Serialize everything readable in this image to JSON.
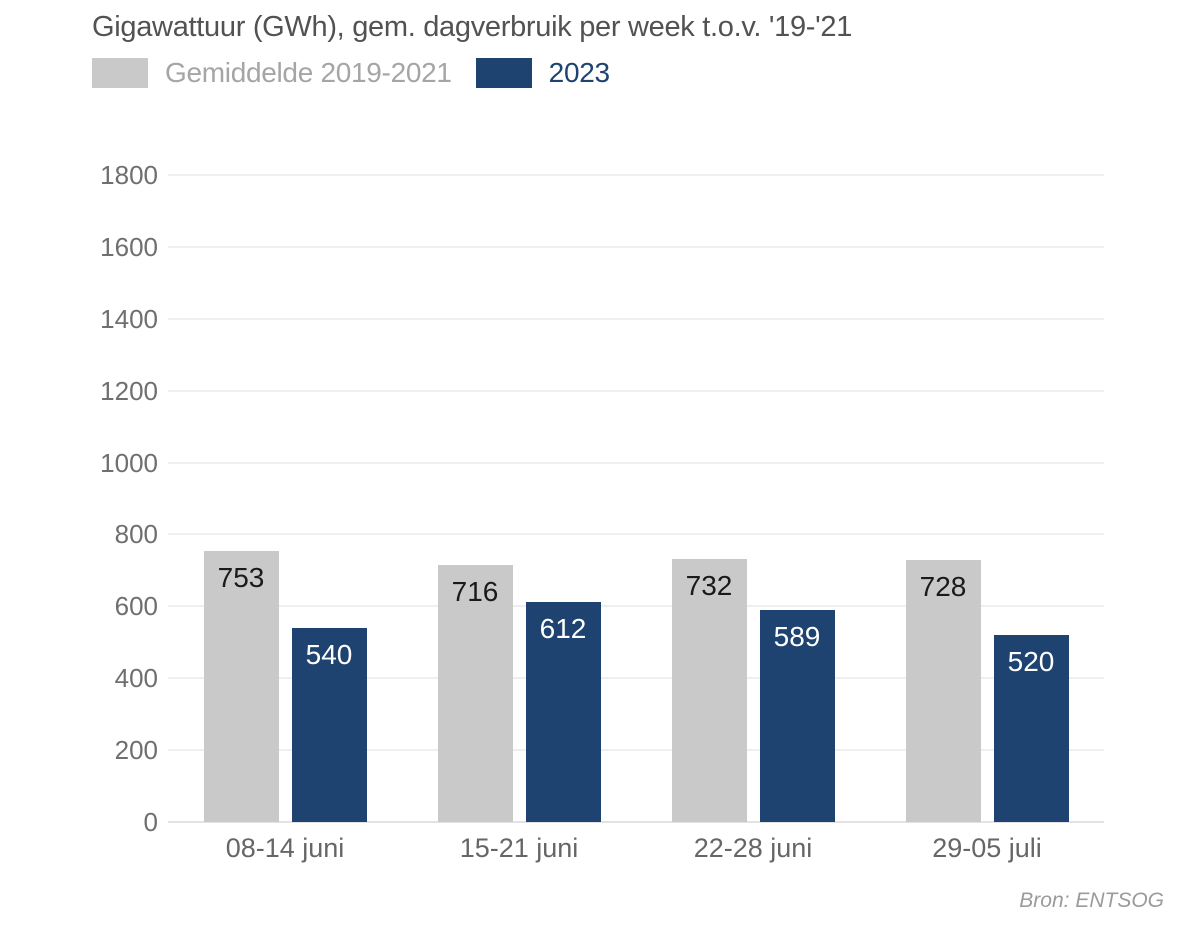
{
  "header": {
    "title": "Gigawattuur (GWh), gem. dagverbruik per week t.o.v. '19-'21"
  },
  "legend": [
    {
      "label": "Gemiddelde 2019-2021",
      "color": "#c9c9c9",
      "text_color": "#a5a5a5"
    },
    {
      "label": "2023",
      "color": "#1e4370",
      "text_color": "#1e4370"
    }
  ],
  "footer": {
    "source": "Bron: ENTSOG"
  },
  "chart_data": {
    "type": "bar",
    "title": "Gigawattuur (GWh), gem. dagverbruik per week t.o.v. '19-'21",
    "categories": [
      "08-14 juni",
      "15-21 juni",
      "22-28 juni",
      "29-05 juli"
    ],
    "series": [
      {
        "name": "Gemiddelde 2019-2021",
        "values": [
          753,
          716,
          732,
          728
        ],
        "color": "#c9c9c9",
        "label_color": "#1a1a1a"
      },
      {
        "name": "2023",
        "values": [
          540,
          612,
          589,
          520
        ],
        "color": "#1e4370",
        "label_color": "#ffffff"
      }
    ],
    "xlabel": "",
    "ylabel": "",
    "ylim": [
      0,
      1800
    ],
    "ytick_step": 200,
    "grid": true,
    "legend_position": "top-left",
    "value_labels": "inside-top",
    "source": "Bron: ENTSOG"
  }
}
